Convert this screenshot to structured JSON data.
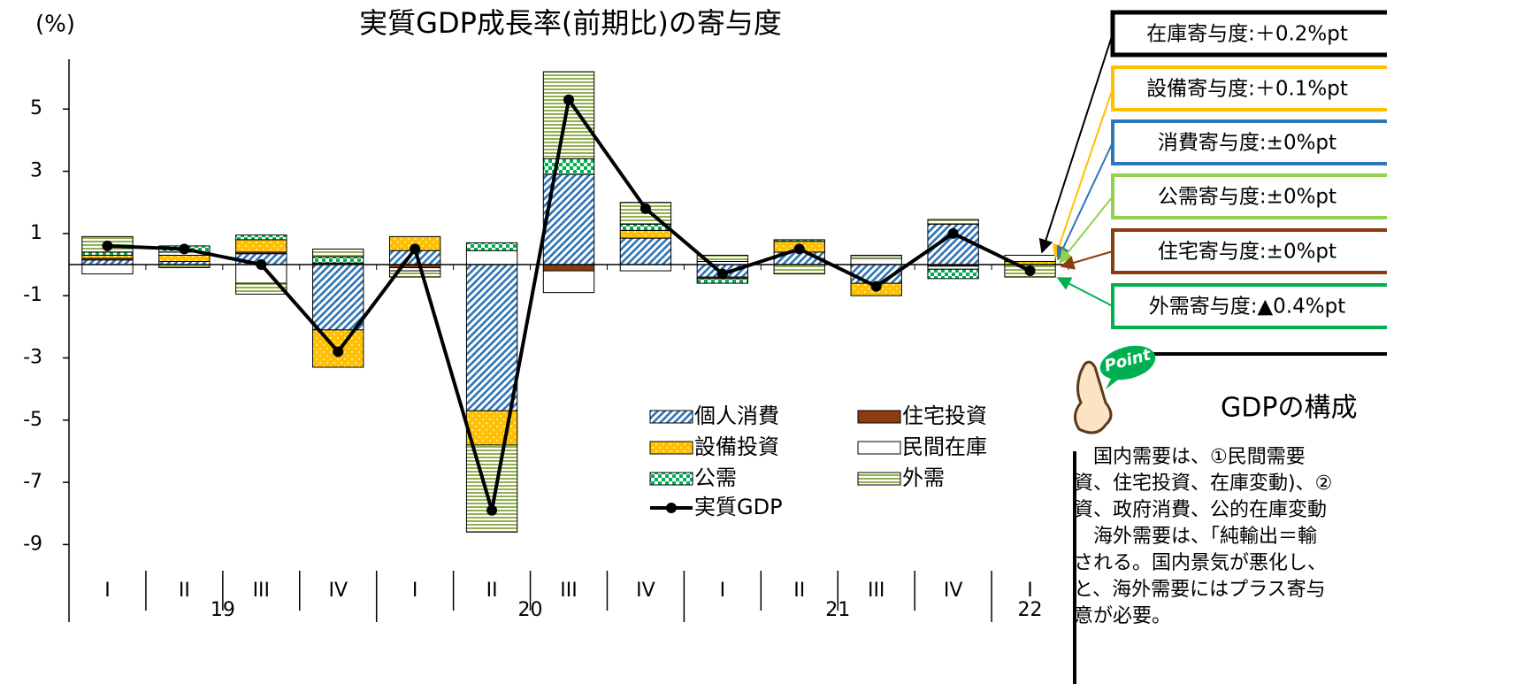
{
  "chart_data": {
    "type": "bar",
    "stacked": true,
    "title": "実質GDP成長率(前期比)の寄与度",
    "y_axis_label": "(%)",
    "categories": [
      "I",
      "II",
      "III",
      "IV",
      "I",
      "II",
      "III",
      "IV",
      "I",
      "II",
      "III",
      "IV",
      "I"
    ],
    "years": [
      "19",
      "20",
      "21",
      "22"
    ],
    "ylim": [
      -9.7,
      6.6
    ],
    "yticks": [
      5,
      3,
      1,
      -1,
      -3,
      -5,
      -7,
      -9
    ],
    "series": [
      {
        "name": "個人消費",
        "color": "#2e75b6",
        "pattern": "diagonal",
        "values": [
          0.15,
          0.1,
          0.35,
          -2.1,
          0.45,
          -4.7,
          2.9,
          0.85,
          -0.4,
          0.4,
          -0.6,
          1.3,
          0
        ]
      },
      {
        "name": "住宅投資",
        "color": "#8b3d0f",
        "pattern": "solid",
        "values": [
          0.05,
          0,
          0.05,
          0.05,
          -0.1,
          0,
          -0.2,
          0,
          -0.05,
          0,
          0,
          -0.05,
          0
        ]
      },
      {
        "name": "設備投資",
        "color": "#ffc000",
        "pattern": "dots",
        "values": [
          0.1,
          0.2,
          0.4,
          -1.2,
          0.45,
          -1.1,
          0,
          0.25,
          0,
          0.35,
          -0.4,
          0,
          0.1
        ]
      },
      {
        "name": "民間在庫",
        "color": "#ffffff",
        "pattern": "solid",
        "values": [
          -0.3,
          0.1,
          -0.6,
          0,
          -0.1,
          0.45,
          -0.7,
          -0.2,
          0.1,
          0,
          0.2,
          -0.1,
          0.2
        ]
      },
      {
        "name": "公需",
        "color": "#00b050",
        "pattern": "check",
        "values": [
          0.1,
          0.2,
          0.15,
          0.2,
          0,
          0.25,
          0.5,
          0.2,
          -0.15,
          0.05,
          0,
          -0.3,
          0
        ]
      },
      {
        "name": "外需",
        "color": "#92b050",
        "pattern": "hstripe",
        "values": [
          0.5,
          -0.1,
          -0.35,
          0.25,
          -0.2,
          -2.8,
          2.8,
          0.7,
          0.2,
          -0.3,
          0.1,
          0.15,
          -0.4
        ]
      },
      {
        "name": "実質GDP",
        "color": "#000000",
        "type": "line",
        "values": [
          0.6,
          0.5,
          0.0,
          -2.8,
          0.5,
          -7.9,
          5.3,
          1.8,
          -0.3,
          0.5,
          -0.7,
          1.0,
          -0.2
        ]
      }
    ]
  },
  "callouts": [
    {
      "text": "在庫寄与度:＋0.2%pt",
      "color": "#000000"
    },
    {
      "text": "設備寄与度:＋0.1%pt",
      "color": "#ffc000"
    },
    {
      "text": "消費寄与度:±0%pt",
      "color": "#2e75b6"
    },
    {
      "text": "公需寄与度:±0%pt",
      "color": "#92d050"
    },
    {
      "text": "住宅寄与度:±0%pt",
      "color": "#8b3d0f"
    },
    {
      "text": "外需寄与度:▲0.4%pt",
      "color": "#00b050"
    }
  ],
  "point": {
    "badge": "Point",
    "heading": "GDPの構成",
    "lines": [
      "　国内需要は、①民間需要",
      "資、住宅投資、在庫変動)、②",
      "資、政府消費、公的在庫変動",
      "　海外需要は、「純輸出＝輸",
      "される。国内景気が悪化し、",
      "と、海外需要にはプラス寄与",
      "意が必要。"
    ]
  }
}
